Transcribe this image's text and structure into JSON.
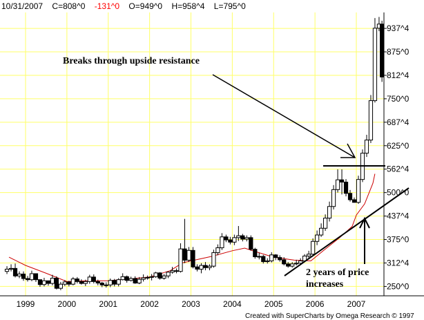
{
  "header": {
    "date": "10/31/2007",
    "close": "C=808^0",
    "change": "-131^0",
    "open": "O=949^0",
    "high": "H=958^4",
    "low": "L=795^0"
  },
  "footer": {
    "credit": "Created with SuperCharts by Omega Research © 1997"
  },
  "colors": {
    "background": "#ffffff",
    "grid": "#ffff66",
    "candle": "#000000",
    "moving_average": "#cc0000",
    "change_negative": "#ff0000"
  },
  "chart_data": {
    "type": "candlestick",
    "x_ticks": [
      "1999",
      "2000",
      "2001",
      "2002",
      "2003",
      "2004",
      "2005",
      "2006",
      "2007"
    ],
    "y_ticks": [
      "250^0",
      "312^4",
      "375^0",
      "437^4",
      "500^0",
      "562^4",
      "625^0",
      "687^4",
      "750^0",
      "812^4",
      "875^0",
      "937^4"
    ],
    "ylim": [
      225,
      980
    ],
    "grid": true,
    "series": [
      {
        "type": "moving-average",
        "x": [
          1998.6,
          1999.0,
          1999.5,
          2000.0,
          2000.5,
          2001.0,
          2001.5,
          2002.0,
          2002.5,
          2002.8,
          2003.0,
          2003.5,
          2004.0,
          2004.3,
          2004.7,
          2005.0,
          2005.5,
          2005.9,
          2006.2,
          2006.6,
          2006.9,
          2007.0,
          2007.2,
          2007.4,
          2007.45
        ],
        "values": [
          328,
          306,
          285,
          263,
          265,
          265,
          270,
          275,
          292,
          313,
          318,
          330,
          345,
          352,
          338,
          328,
          320,
          318,
          345,
          380,
          410,
          440,
          470,
          525,
          550
        ]
      }
    ],
    "annotations": {
      "breakout": "Breaks through upside resistance",
      "trend_line1": "2 years of price",
      "trend_line2": "increases"
    },
    "candles": {
      "x": [
        1998.55,
        1998.65,
        1998.75,
        1998.85,
        1998.95,
        1999.05,
        1999.15,
        1999.25,
        1999.35,
        1999.45,
        1999.55,
        1999.65,
        1999.75,
        1999.85,
        1999.95,
        2000.05,
        2000.15,
        2000.25,
        2000.35,
        2000.45,
        2000.55,
        2000.65,
        2000.75,
        2000.85,
        2000.95,
        2001.05,
        2001.15,
        2001.25,
        2001.35,
        2001.45,
        2001.55,
        2001.65,
        2001.75,
        2001.85,
        2001.95,
        2002.05,
        2002.15,
        2002.25,
        2002.35,
        2002.45,
        2002.55,
        2002.65,
        2002.75,
        2002.85,
        2002.95,
        2003.05,
        2003.15,
        2003.25,
        2003.35,
        2003.45,
        2003.55,
        2003.65,
        2003.75,
        2003.85,
        2003.95,
        2004.05,
        2004.15,
        2004.25,
        2004.35,
        2004.45,
        2004.55,
        2004.65,
        2004.75,
        2004.85,
        2004.95,
        2005.05,
        2005.15,
        2005.25,
        2005.35,
        2005.45,
        2005.55,
        2005.65,
        2005.75,
        2005.85,
        2005.95,
        2006.05,
        2006.15,
        2006.25,
        2006.35,
        2006.45,
        2006.55,
        2006.65,
        2006.75,
        2006.85,
        2006.95,
        2007.05,
        2007.15,
        2007.25,
        2007.35,
        2007.45,
        2007.55,
        2007.62
      ],
      "open": [
        290,
        296,
        298,
        278,
        283,
        271,
        268,
        284,
        268,
        255,
        265,
        258,
        272,
        245,
        256,
        262,
        256,
        270,
        263,
        258,
        263,
        275,
        263,
        259,
        254,
        254,
        266,
        256,
        268,
        276,
        266,
        271,
        259,
        269,
        273,
        274,
        276,
        286,
        272,
        278,
        288,
        292,
        290,
        350,
        320,
        346,
        302,
        296,
        306,
        300,
        304,
        340,
        353,
        382,
        374,
        368,
        380,
        385,
        376,
        380,
        349,
        329,
        330,
        316,
        318,
        334,
        327,
        321,
        310,
        304,
        310,
        312,
        318,
        331,
        336,
        370,
        387,
        405,
        432,
        463,
        508,
        534,
        528,
        498,
        481,
        474,
        535,
        605,
        640,
        745,
        938,
        949
      ],
      "close": [
        296,
        298,
        278,
        283,
        271,
        268,
        284,
        268,
        255,
        265,
        258,
        272,
        245,
        256,
        262,
        256,
        270,
        263,
        258,
        263,
        275,
        263,
        259,
        254,
        254,
        266,
        256,
        268,
        276,
        266,
        271,
        259,
        269,
        273,
        274,
        276,
        286,
        272,
        278,
        288,
        292,
        290,
        350,
        320,
        346,
        302,
        296,
        306,
        300,
        304,
        340,
        353,
        382,
        374,
        368,
        380,
        385,
        376,
        380,
        349,
        329,
        330,
        316,
        318,
        334,
        327,
        321,
        310,
        304,
        310,
        312,
        318,
        331,
        336,
        370,
        387,
        405,
        432,
        463,
        508,
        534,
        528,
        498,
        481,
        474,
        535,
        605,
        640,
        745,
        938,
        949,
        808
      ],
      "high": [
        304,
        309,
        311,
        290,
        290,
        278,
        292,
        277,
        264,
        273,
        265,
        281,
        277,
        262,
        267,
        265,
        275,
        275,
        269,
        268,
        281,
        282,
        268,
        262,
        261,
        271,
        270,
        272,
        285,
        279,
        276,
        277,
        275,
        282,
        279,
        283,
        289,
        288,
        283,
        290,
        302,
        298,
        365,
        430,
        355,
        355,
        309,
        312,
        315,
        309,
        348,
        362,
        392,
        388,
        382,
        388,
        411,
        390,
        386,
        386,
        353,
        340,
        334,
        325,
        341,
        336,
        333,
        328,
        315,
        315,
        321,
        325,
        336,
        345,
        378,
        399,
        418,
        442,
        476,
        520,
        562,
        562,
        536,
        507,
        487,
        545,
        615,
        654,
        760,
        965,
        968,
        958
      ],
      "low": [
        283,
        290,
        274,
        272,
        265,
        263,
        264,
        262,
        249,
        250,
        252,
        253,
        242,
        240,
        251,
        250,
        253,
        258,
        255,
        251,
        257,
        258,
        253,
        248,
        247,
        248,
        250,
        250,
        266,
        260,
        263,
        257,
        256,
        263,
        268,
        266,
        273,
        268,
        268,
        272,
        284,
        285,
        287,
        312,
        315,
        298,
        290,
        285,
        293,
        293,
        300,
        333,
        347,
        368,
        362,
        360,
        371,
        370,
        370,
        345,
        324,
        322,
        311,
        311,
        314,
        320,
        316,
        306,
        300,
        300,
        306,
        307,
        315,
        323,
        332,
        360,
        382,
        398,
        423,
        455,
        500,
        495,
        490,
        476,
        473,
        470,
        528,
        595,
        632,
        740,
        930,
        795
      ]
    }
  }
}
